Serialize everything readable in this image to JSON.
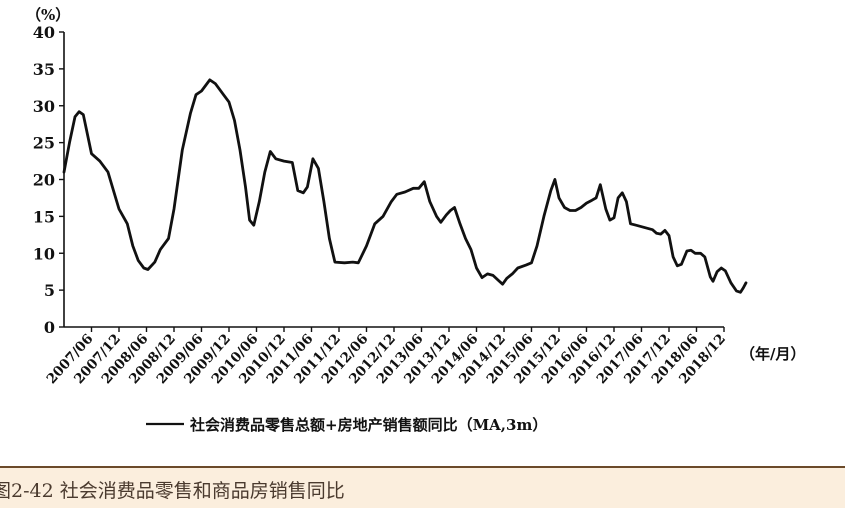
{
  "chart_data": {
    "type": "line",
    "y_unit_label": "（%）",
    "x_unit_label": "（年/月）",
    "ylim": [
      0,
      40
    ],
    "yticks": [
      0,
      5,
      10,
      15,
      20,
      25,
      30,
      35,
      40
    ],
    "categories": [
      "2007/06",
      "2007/12",
      "2008/06",
      "2008/12",
      "2009/06",
      "2009/12",
      "2010/06",
      "2010/12",
      "2011/06",
      "2011/12",
      "2012/06",
      "2012/12",
      "2013/06",
      "2013/12",
      "2014/06",
      "2014/12",
      "2015/06",
      "2015/12",
      "2016/06",
      "2016/12",
      "2017/06",
      "2017/12",
      "2018/06",
      "2018/12"
    ],
    "legend": "社会消费品零售总额+房地产销售额同比（MA,3m）",
    "legend_position": "bottom",
    "grid": false,
    "series": [
      {
        "name": "社会消费品零售总额+房地产销售额同比（MA,3m）",
        "color": "#111111",
        "points": [
          [
            0,
            21
          ],
          [
            0.2,
            25
          ],
          [
            0.4,
            28.5
          ],
          [
            0.55,
            29.2
          ],
          [
            0.7,
            28.8
          ],
          [
            1.0,
            23.5
          ],
          [
            1.3,
            22.5
          ],
          [
            1.6,
            21
          ],
          [
            1.8,
            18.5
          ],
          [
            2.0,
            16
          ],
          [
            2.3,
            14
          ],
          [
            2.5,
            11
          ],
          [
            2.7,
            9
          ],
          [
            2.9,
            8
          ],
          [
            3.05,
            7.8
          ],
          [
            3.3,
            8.8
          ],
          [
            3.5,
            10.5
          ],
          [
            3.8,
            12
          ],
          [
            4.0,
            16
          ],
          [
            4.3,
            24
          ],
          [
            4.6,
            29
          ],
          [
            4.8,
            31.5
          ],
          [
            5.0,
            32
          ],
          [
            5.3,
            33.5
          ],
          [
            5.5,
            33
          ],
          [
            5.8,
            31.5
          ],
          [
            6.0,
            30.5
          ],
          [
            6.2,
            28
          ],
          [
            6.4,
            24
          ],
          [
            6.6,
            19
          ],
          [
            6.75,
            14.5
          ],
          [
            6.9,
            13.8
          ],
          [
            7.1,
            17
          ],
          [
            7.3,
            21
          ],
          [
            7.5,
            23.8
          ],
          [
            7.7,
            22.8
          ],
          [
            8.0,
            22.5
          ],
          [
            8.3,
            22.3
          ],
          [
            8.5,
            18.5
          ],
          [
            8.7,
            18.2
          ],
          [
            8.85,
            19
          ],
          [
            9.05,
            22.8
          ],
          [
            9.25,
            21.5
          ],
          [
            9.45,
            17
          ],
          [
            9.65,
            12
          ],
          [
            9.85,
            8.8
          ],
          [
            10.2,
            8.7
          ],
          [
            10.5,
            8.8
          ],
          [
            10.7,
            8.7
          ],
          [
            11.0,
            11
          ],
          [
            11.3,
            14
          ],
          [
            11.6,
            15
          ],
          [
            11.9,
            17
          ],
          [
            12.1,
            18
          ],
          [
            12.4,
            18.3
          ],
          [
            12.7,
            18.8
          ],
          [
            12.9,
            18.8
          ],
          [
            13.1,
            19.7
          ],
          [
            13.3,
            17
          ],
          [
            13.55,
            15
          ],
          [
            13.7,
            14.2
          ],
          [
            13.9,
            15.2
          ],
          [
            14.05,
            15.8
          ],
          [
            14.2,
            16.2
          ],
          [
            14.4,
            14
          ],
          [
            14.6,
            12
          ],
          [
            14.8,
            10.5
          ],
          [
            15.0,
            8
          ],
          [
            15.2,
            6.7
          ],
          [
            15.4,
            7.2
          ],
          [
            15.6,
            7
          ],
          [
            15.8,
            6.3
          ],
          [
            15.95,
            5.8
          ],
          [
            16.1,
            6.6
          ],
          [
            16.3,
            7.2
          ],
          [
            16.5,
            8
          ],
          [
            16.8,
            8.4
          ],
          [
            17.0,
            8.7
          ],
          [
            17.2,
            11
          ],
          [
            17.45,
            15
          ],
          [
            17.7,
            18.5
          ],
          [
            17.85,
            20
          ],
          [
            18.0,
            17.5
          ],
          [
            18.2,
            16.2
          ],
          [
            18.4,
            15.8
          ],
          [
            18.6,
            15.8
          ],
          [
            18.8,
            16.2
          ],
          [
            19.0,
            16.8
          ],
          [
            19.2,
            17.2
          ],
          [
            19.35,
            17.5
          ],
          [
            19.5,
            19.3
          ],
          [
            19.7,
            16
          ],
          [
            19.85,
            14.5
          ],
          [
            20.0,
            14.8
          ],
          [
            20.15,
            17.5
          ],
          [
            20.3,
            18.2
          ],
          [
            20.45,
            17
          ],
          [
            20.6,
            14
          ],
          [
            20.8,
            13.8
          ],
          [
            21.0,
            13.6
          ],
          [
            21.2,
            13.4
          ],
          [
            21.4,
            13.2
          ],
          [
            21.55,
            12.7
          ],
          [
            21.7,
            12.6
          ],
          [
            21.85,
            13.1
          ],
          [
            22.0,
            12.4
          ],
          [
            22.15,
            9.5
          ],
          [
            22.3,
            8.3
          ],
          [
            22.45,
            8.5
          ],
          [
            22.65,
            10.3
          ],
          [
            22.8,
            10.4
          ],
          [
            22.95,
            10
          ],
          [
            23.15,
            10
          ],
          [
            23.3,
            9.5
          ],
          [
            23.5,
            6.8
          ],
          [
            23.6,
            6.2
          ],
          [
            23.75,
            7.5
          ],
          [
            23.9,
            8
          ],
          [
            24.05,
            7.6
          ],
          [
            24.25,
            6
          ],
          [
            24.45,
            4.9
          ],
          [
            24.6,
            4.7
          ],
          [
            24.7,
            5.3
          ],
          [
            24.8,
            6
          ]
        ]
      }
    ]
  },
  "caption": "图2-42 社会消费品零售和商品房销售同比"
}
